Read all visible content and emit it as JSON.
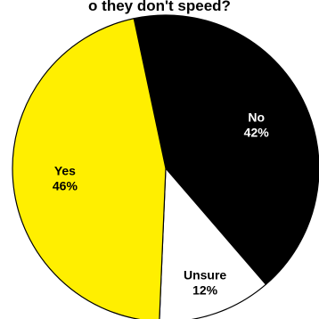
{
  "chart_data": {
    "type": "pie",
    "title": "o they don't speed?",
    "slices": [
      {
        "label": "No",
        "value": 42,
        "display": "42%",
        "color": "#000000",
        "text_color": "#ffffff"
      },
      {
        "label": "Unsure",
        "value": 12,
        "display": "12%",
        "color": "#ffffff",
        "text_color": "#000000"
      },
      {
        "label": "Yes",
        "value": 46,
        "display": "46%",
        "color": "#ffef00",
        "text_color": "#000000"
      }
    ],
    "outline_color": "#000000"
  }
}
